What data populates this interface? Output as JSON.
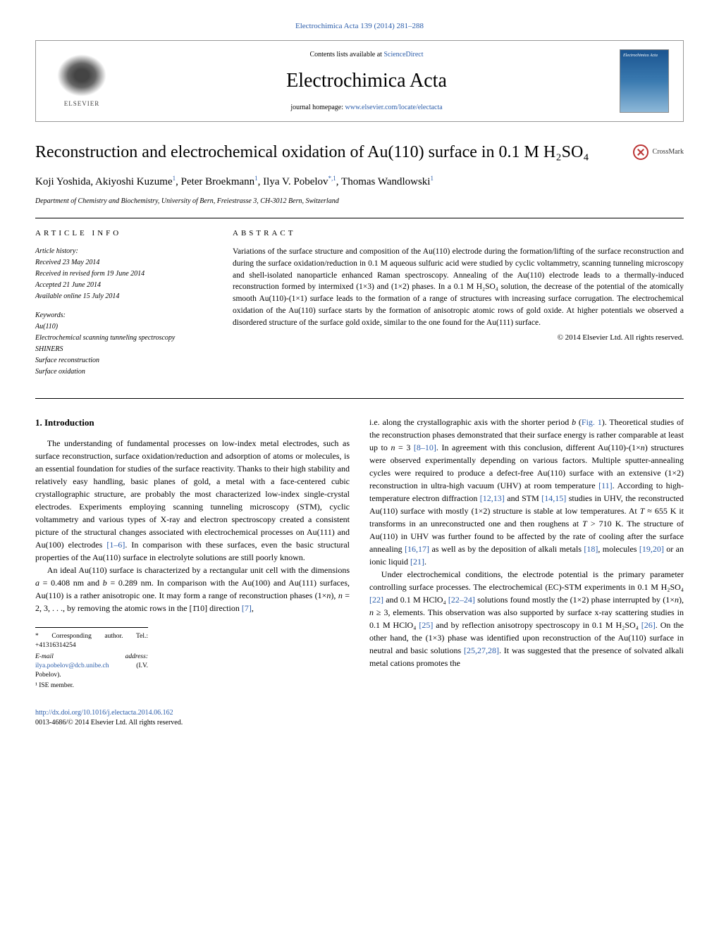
{
  "header": {
    "top_link": "Electrochimica Acta 139 (2014) 281–288",
    "contents_prefix": "Contents lists available at ",
    "contents_link": "ScienceDirect",
    "journal_name": "Electrochimica Acta",
    "homepage_prefix": "journal homepage: ",
    "homepage_url": "www.elsevier.com/locate/electacta",
    "elsevier": "ELSEVIER",
    "cover_text": "Electrochimica Acta"
  },
  "article": {
    "title_html": "Reconstruction and electrochemical oxidation of Au(110) surface in 0.1 M H₂SO₄",
    "crossmark": "CrossMark",
    "authors_html": "Koji Yoshida, Akiyoshi Kuzume<sup>1</sup>, Peter Broekmann<sup>1</sup>, Ilya V. Pobelov<sup>*,1</sup>, Thomas Wandlowski<sup>1</sup>",
    "affiliation": "Department of Chemistry and Biochemistry, University of Bern, Freiestrasse 3, CH-3012 Bern, Switzerland"
  },
  "info": {
    "section_label": "ARTICLE INFO",
    "history_label": "Article history:",
    "received": "Received 23 May 2014",
    "revised": "Received in revised form 19 June 2014",
    "accepted": "Accepted 21 June 2014",
    "online": "Available online 15 July 2014",
    "keywords_label": "Keywords:",
    "kw1": "Au(110)",
    "kw2": "Electrochemical scanning tunneling spectroscopy",
    "kw3": "SHINERS",
    "kw4": "Surface reconstruction",
    "kw5": "Surface oxidation"
  },
  "abstract": {
    "label": "ABSTRACT",
    "text": "Variations of the surface structure and composition of the Au(110) electrode during the formation/lifting of the surface reconstruction and during the surface oxidation/reduction in 0.1 M aqueous sulfuric acid were studied by cyclic voltammetry, scanning tunneling microscopy and shell-isolated nanoparticle enhanced Raman spectroscopy. Annealing of the Au(110) electrode leads to a thermally-induced reconstruction formed by intermixed (1×3) and (1×2) phases. In a 0.1 M H₂SO₄ solution, the decrease of the potential of the atomically smooth Au(110)-(1×1) surface leads to the formation of a range of structures with increasing surface corrugation. The electrochemical oxidation of the Au(110) surface starts by the formation of anisotropic atomic rows of gold oxide. At higher potentials we observed a disordered structure of the surface gold oxide, similar to the one found for the Au(111) surface.",
    "copyright": "© 2014 Elsevier Ltd. All rights reserved."
  },
  "body": {
    "heading1": "1. Introduction",
    "col1_p1_html": "The understanding of fundamental processes on low-index metal electrodes, such as surface reconstruction, surface oxidation/reduction and adsorption of atoms or molecules, is an essential foundation for studies of the surface reactivity. Thanks to their high stability and relatively easy handling, basic planes of gold, a metal with a face-centered cubic crystallographic structure, are probably the most characterized low-index single-crystal electrodes. Experiments employing scanning tunneling microscopy (STM), cyclic voltammetry and various types of X-ray and electron spectroscopy created a consistent picture of the structural changes associated with electrochemical processes on Au(111) and Au(100) electrodes <span class=\"ref\">[1–6]</span>. In comparison with these surfaces, even the basic structural properties of the Au(110) surface in electrolyte solutions are still poorly known.",
    "col1_p2_html": "An ideal Au(110) surface is characterized by a rectangular unit cell with the dimensions <span class=\"ital\">a</span> = 0.408 nm and <span class=\"ital\">b</span> = 0.289 nm. In comparison with the Au(100) and Au(111) surfaces, Au(110) is a rather anisotropic one. It may form a range of reconstruction phases (1×<span class=\"ital\">n</span>), <span class=\"ital\">n</span> = 2, 3, . . ., by removing the atomic rows in the [1̄10] direction <span class=\"ref\">[7]</span>,",
    "col2_p1_html": "i.e. along the crystallographic axis with the shorter period <span class=\"ital\">b</span> (<span class=\"ref\">Fig. 1</span>). Theoretical studies of the reconstruction phases demonstrated that their surface energy is rather comparable at least up to <span class=\"ital\">n</span> = 3 <span class=\"ref\">[8–10]</span>. In agreement with this conclusion, different Au(110)-(1×<span class=\"ital\">n</span>) structures were observed experimentally depending on various factors. Multiple sputter-annealing cycles were required to produce a defect-free Au(110) surface with an extensive (1×2) reconstruction in ultra-high vacuum (UHV) at room temperature <span class=\"ref\">[11]</span>. According to high-temperature electron diffraction <span class=\"ref\">[12,13]</span> and STM <span class=\"ref\">[14,15]</span> studies in UHV, the reconstructed Au(110) surface with mostly (1×2) structure is stable at low temperatures. At <span class=\"ital\">T</span> ≈ 655 K it transforms in an unreconstructed one and then roughens at <span class=\"ital\">T</span> > 710 K. The structure of Au(110) in UHV was further found to be affected by the rate of cooling after the surface annealing <span class=\"ref\">[16,17]</span> as well as by the deposition of alkali metals <span class=\"ref\">[18]</span>, molecules <span class=\"ref\">[19,20]</span> or an ionic liquid <span class=\"ref\">[21]</span>.",
    "col2_p2_html": "Under electrochemical conditions, the electrode potential is the primary parameter controlling surface processes. The electrochemical (EC)-STM experiments in 0.1 M H₂SO₄ <span class=\"ref\">[22]</span> and 0.1 M HClO₄ <span class=\"ref\">[22–24]</span> solutions found mostly the (1×2) phase interrupted by (1×<span class=\"ital\">n</span>), <span class=\"ital\">n</span> ≥ 3, elements. This observation was also supported by surface x-ray scattering studies in 0.1 M HClO₄ <span class=\"ref\">[25]</span> and by reflection anisotropy spectroscopy in 0.1 M H₂SO₄ <span class=\"ref\">[26]</span>. On the other hand, the (1×3) phase was identified upon reconstruction of the Au(110) surface in neutral and basic solutions <span class=\"ref\">[25,27,28]</span>. It was suggested that the presence of solvated alkali metal cations promotes the"
  },
  "footnotes": {
    "corr": "* Corresponding author. Tel.: +41316314254",
    "email_label": "E-mail address: ",
    "email": "ilya.pobelov@dcb.unibe.ch",
    "email_name": " (I.V. Pobelov).",
    "ise": "¹ ISE member."
  },
  "bottom": {
    "doi": "http://dx.doi.org/10.1016/j.electacta.2014.06.162",
    "issn": "0013-4686/© 2014 Elsevier Ltd. All rights reserved."
  },
  "colors": {
    "link": "#2a5caa",
    "text": "#000000",
    "border": "#999999"
  }
}
